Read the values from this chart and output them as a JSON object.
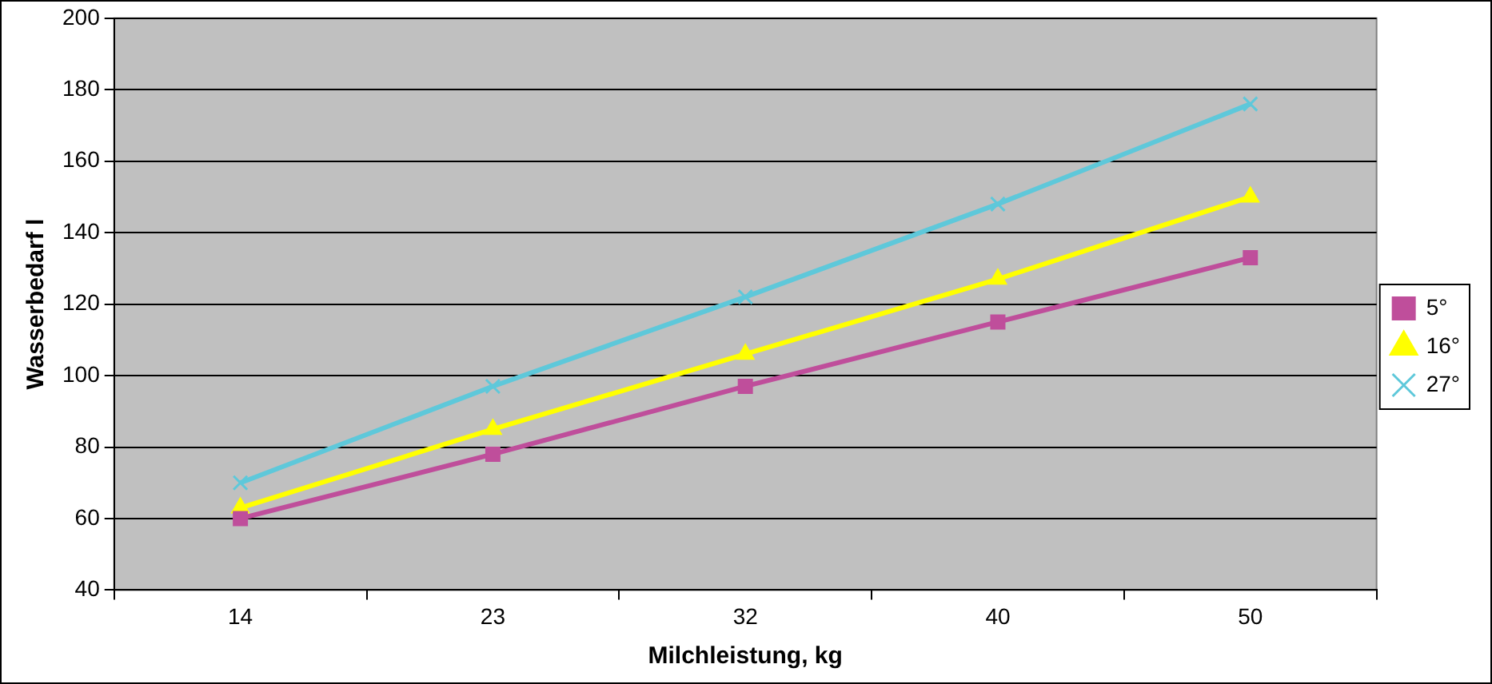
{
  "chart_data": {
    "type": "line",
    "xlabel": "Milchleistung, kg",
    "ylabel": "Wasserbedarf l",
    "categories": [
      "14",
      "23",
      "32",
      "40",
      "50"
    ],
    "series": [
      {
        "name": "5°",
        "color": "#bf4e9b",
        "marker": "square",
        "values": [
          60,
          78,
          97,
          115,
          133
        ]
      },
      {
        "name": "16°",
        "color": "#ffff00",
        "marker": "triangle",
        "values": [
          63,
          85,
          106,
          127,
          150
        ]
      },
      {
        "name": "27°",
        "color": "#5ec8da",
        "marker": "cross",
        "values": [
          70,
          97,
          122,
          148,
          176
        ]
      }
    ],
    "ylim": [
      40,
      200
    ],
    "yticks": [
      40,
      60,
      80,
      100,
      120,
      140,
      160,
      180,
      200
    ],
    "grid": "y",
    "legend": "right",
    "line_style": "solid"
  }
}
